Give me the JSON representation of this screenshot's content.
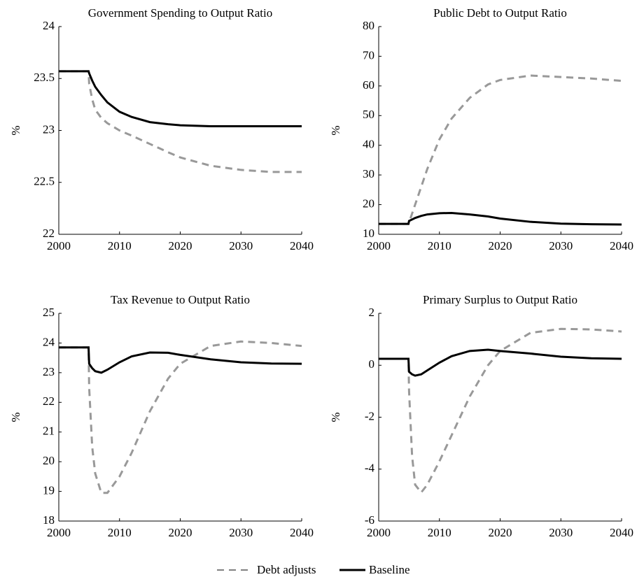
{
  "chart_data": [
    {
      "type": "line",
      "title": "Government Spending to Output Ratio",
      "ylabel": "%",
      "x": [
        2000,
        2004.9,
        2005,
        2005.5,
        2006,
        2007,
        2008,
        2010,
        2012,
        2015,
        2018,
        2020,
        2025,
        2030,
        2035,
        2040
      ],
      "series": [
        {
          "name": "Debt adjusts",
          "color": "#999999",
          "linestyle": "dashed",
          "values": [
            23.57,
            23.57,
            23.45,
            23.3,
            23.2,
            23.12,
            23.07,
            23.0,
            22.95,
            22.87,
            22.79,
            22.74,
            22.66,
            22.62,
            22.6,
            22.6
          ]
        },
        {
          "name": "Baseline",
          "color": "#000000",
          "linestyle": "solid",
          "values": [
            23.57,
            23.57,
            23.55,
            23.48,
            23.42,
            23.34,
            23.27,
            23.18,
            23.13,
            23.08,
            23.06,
            23.05,
            23.04,
            23.04,
            23.04,
            23.04
          ]
        }
      ],
      "xlim": [
        2000,
        2040
      ],
      "xticks": [
        2000,
        2010,
        2020,
        2030,
        2040
      ],
      "ylim": [
        22,
        24
      ],
      "yticks": [
        22,
        22.5,
        23,
        23.5,
        24
      ]
    },
    {
      "type": "line",
      "title": "Public Debt to Output Ratio",
      "ylabel": "%",
      "x": [
        2000,
        2004.9,
        2005,
        2005.5,
        2006,
        2007,
        2008,
        2010,
        2012,
        2015,
        2018,
        2020,
        2025,
        2030,
        2035,
        2040
      ],
      "series": [
        {
          "name": "Debt adjusts",
          "color": "#999999",
          "linestyle": "dashed",
          "values": [
            13.5,
            13.5,
            14,
            17,
            20,
            26,
            32,
            42,
            49,
            56,
            60.5,
            62,
            63.5,
            63,
            62.5,
            61.7
          ]
        },
        {
          "name": "Baseline",
          "color": "#000000",
          "linestyle": "solid",
          "values": [
            13.5,
            13.5,
            14.5,
            15,
            15.5,
            16.2,
            16.7,
            17.1,
            17.2,
            16.7,
            16,
            15.3,
            14.2,
            13.6,
            13.4,
            13.3
          ]
        }
      ],
      "xlim": [
        2000,
        2040
      ],
      "xticks": [
        2000,
        2010,
        2020,
        2030,
        2040
      ],
      "ylim": [
        10,
        80
      ],
      "yticks": [
        10,
        20,
        30,
        40,
        50,
        60,
        70,
        80
      ]
    },
    {
      "type": "line",
      "title": "Tax Revenue to Output Ratio",
      "ylabel": "%",
      "x": [
        2000,
        2004.9,
        2005,
        2005.5,
        2006,
        2007,
        2008,
        2010,
        2012,
        2015,
        2018,
        2020,
        2025,
        2030,
        2035,
        2040
      ],
      "series": [
        {
          "name": "Debt adjusts",
          "color": "#999999",
          "linestyle": "dashed",
          "values": [
            23.85,
            23.85,
            22.5,
            20.5,
            19.6,
            18.95,
            18.95,
            19.5,
            20.3,
            21.7,
            22.8,
            23.3,
            23.9,
            24.05,
            24.0,
            23.9
          ]
        },
        {
          "name": "Baseline",
          "color": "#000000",
          "linestyle": "solid",
          "values": [
            23.85,
            23.85,
            23.3,
            23.15,
            23.05,
            23.0,
            23.1,
            23.35,
            23.55,
            23.68,
            23.67,
            23.6,
            23.45,
            23.35,
            23.31,
            23.3
          ]
        }
      ],
      "xlim": [
        2000,
        2040
      ],
      "xticks": [
        2000,
        2010,
        2020,
        2030,
        2040
      ],
      "ylim": [
        18,
        25
      ],
      "yticks": [
        18,
        19,
        20,
        21,
        22,
        23,
        24,
        25
      ]
    },
    {
      "type": "line",
      "title": "Primary Surplus to Output Ratio",
      "ylabel": "%",
      "x": [
        2000,
        2004.9,
        2005,
        2005.5,
        2006,
        2007,
        2008,
        2010,
        2012,
        2015,
        2018,
        2020,
        2025,
        2030,
        2035,
        2040
      ],
      "series": [
        {
          "name": "Debt adjusts",
          "color": "#999999",
          "linestyle": "dashed",
          "values": [
            0.25,
            0.25,
            -1,
            -3.5,
            -4.6,
            -4.9,
            -4.6,
            -3.7,
            -2.7,
            -1.2,
            0.0,
            0.55,
            1.25,
            1.4,
            1.38,
            1.3
          ]
        },
        {
          "name": "Baseline",
          "color": "#000000",
          "linestyle": "solid",
          "values": [
            0.25,
            0.25,
            -0.25,
            -0.35,
            -0.4,
            -0.35,
            -0.2,
            0.1,
            0.35,
            0.55,
            0.6,
            0.55,
            0.45,
            0.33,
            0.27,
            0.25
          ]
        }
      ],
      "xlim": [
        2000,
        2040
      ],
      "xticks": [
        2000,
        2010,
        2020,
        2030,
        2040
      ],
      "ylim": [
        -6,
        2
      ],
      "yticks": [
        -6,
        -4,
        -2,
        0,
        2
      ]
    }
  ]
}
